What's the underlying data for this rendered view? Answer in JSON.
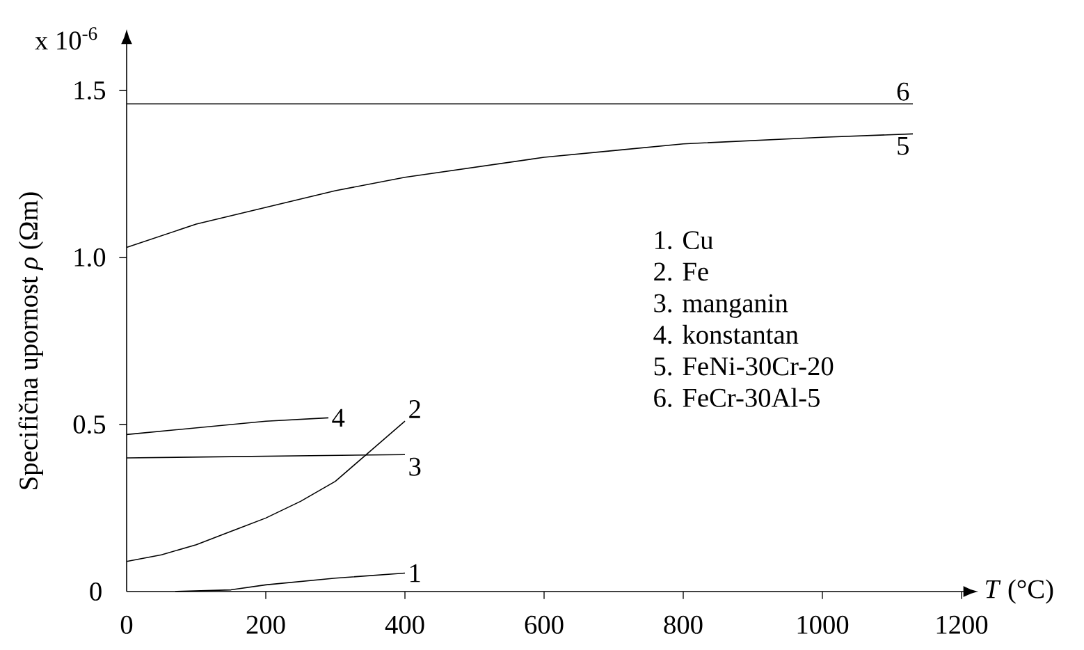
{
  "chart_data": {
    "type": "line",
    "xlabel": "*T* (°C)",
    "ylabel": "Specifična upornost *ρ* (Ωm)",
    "xlim": [
      0,
      1200
    ],
    "ylim": [
      0,
      1.5
    ],
    "xticks": [
      0,
      200,
      400,
      600,
      800,
      1000,
      1200
    ],
    "yticks": [
      0,
      0.5,
      {
        "value": 1,
        "label": "1.0"
      },
      1.5
    ],
    "grid": false,
    "marker": "none",
    "line_style": "solid",
    "annotations": [
      "x 10$^{-6}$",
      "1. Cu",
      "2. Fe",
      "3. manganin",
      "4. konstantan",
      "5. FeNi-30Cr-20",
      "6. FeCr-30Al-5"
    ],
    "series": [
      {
        "name": "1",
        "color": "#000000",
        "x": [
          70,
          150,
          200,
          300,
          400
        ],
        "values": [
          0,
          0.005,
          0.02,
          0.04,
          0.055
        ]
      },
      {
        "name": "2",
        "color": "#000000",
        "x": [
          0,
          50,
          100,
          150,
          200,
          250,
          300,
          350,
          400
        ],
        "values": [
          0.09,
          0.11,
          0.14,
          0.18,
          0.22,
          0.27,
          0.33,
          0.42,
          0.51
        ]
      },
      {
        "name": "3",
        "color": "#000000",
        "x": [
          0,
          400
        ],
        "values": [
          0.4,
          0.41
        ]
      },
      {
        "name": "4",
        "color": "#000000",
        "x": [
          0,
          100,
          200,
          290
        ],
        "values": [
          0.47,
          0.49,
          0.51,
          0.52
        ]
      },
      {
        "name": "5",
        "color": "#000000",
        "x": [
          0,
          100,
          200,
          300,
          400,
          500,
          600,
          700,
          800,
          900,
          1000,
          1130
        ],
        "values": [
          1.03,
          1.1,
          1.15,
          1.2,
          1.24,
          1.27,
          1.3,
          1.32,
          1.34,
          1.35,
          1.36,
          1.37
        ]
      },
      {
        "name": "6",
        "color": "#000000",
        "x": [
          0,
          1130
        ],
        "values": [
          1.46,
          1.46
        ]
      }
    ]
  }
}
